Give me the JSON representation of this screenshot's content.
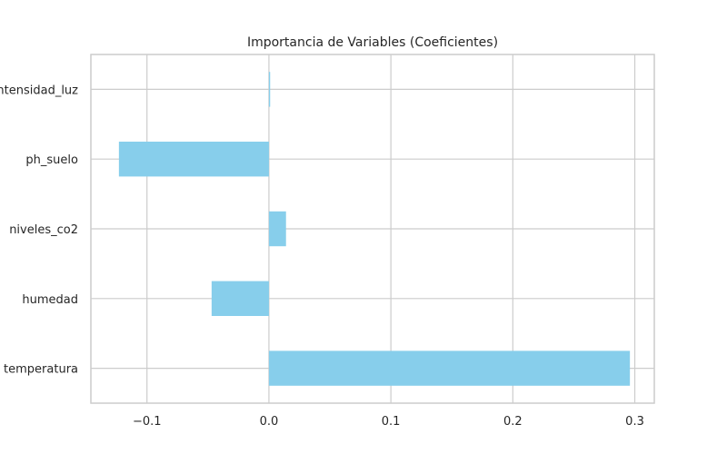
{
  "chart_data": {
    "type": "bar",
    "orientation": "horizontal",
    "title": "Importancia de Variables (Coeficientes)",
    "xlabel": "",
    "ylabel": "",
    "categories": [
      "temperatura",
      "humedad",
      "niveles_co2",
      "ph_suelo",
      "intensidad_luz"
    ],
    "values": [
      0.296,
      -0.047,
      0.014,
      -0.123,
      0.001
    ],
    "xlim": [
      -0.146,
      0.316
    ],
    "xticks": [
      -0.1,
      0.0,
      0.1,
      0.2,
      0.3
    ],
    "xtick_labels": [
      "−0.1",
      "0.0",
      "0.1",
      "0.2",
      "0.3"
    ],
    "grid": true,
    "bar_color": "#87CEEB",
    "grid_color": "#cccccc",
    "spine_color": "#cccccc",
    "text_color": "#262626"
  }
}
